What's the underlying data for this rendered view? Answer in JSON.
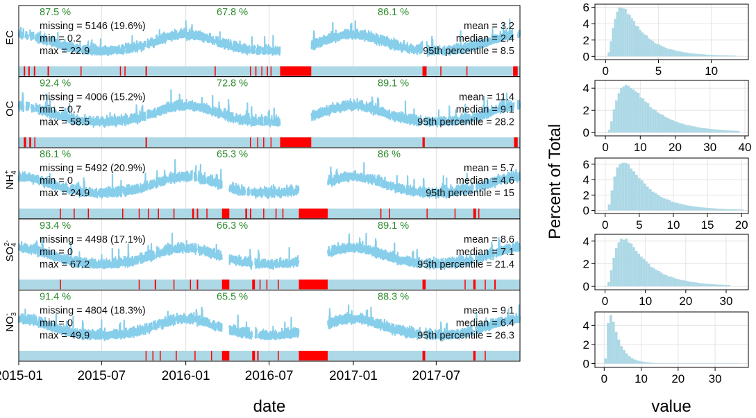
{
  "chart_data": [
    {
      "type": "line",
      "xlabel": "date",
      "ylabel": "",
      "x_ticks": [
        "2015-01",
        "2015-07",
        "2016-01",
        "2016-07",
        "2017-01",
        "2017-07"
      ],
      "x_tick_dates": [
        "2015-01-01",
        "2015-07-01",
        "2016-01-01",
        "2016-07-01",
        "2017-01-01",
        "2017-07-01"
      ],
      "xlim": [
        "2015-01-01",
        "2017-12-31"
      ],
      "series_color": "#87ceeb",
      "missing_color": "#ff0000",
      "bar_color": "#add8e6",
      "panels": [
        {
          "name": "EC",
          "label_main": "EC",
          "label_sub": "",
          "label_sup": "",
          "ymax": 22.9,
          "year_pct": [
            "87.5 %",
            "67.8 %",
            "86.1 %"
          ],
          "stats_left": [
            "missing = 5146 (19.6%)",
            "min = 0.2",
            "max = 22.9"
          ],
          "stats_right": [
            "mean = 3.2",
            "median = 2.4",
            "95th percentile = 8.5"
          ],
          "missing_periods": [
            [
              "2016-07-25",
              "2016-10-01"
            ],
            [
              "2015-01-12",
              "2015-01-15"
            ],
            [
              "2015-01-22",
              "2015-01-25"
            ],
            [
              "2015-02-03",
              "2015-02-06"
            ],
            [
              "2015-03-05",
              "2015-03-08"
            ],
            [
              "2015-05-16",
              "2015-05-18"
            ],
            [
              "2015-08-10",
              "2015-08-12"
            ],
            [
              "2015-08-20",
              "2015-08-22"
            ],
            [
              "2015-10-05",
              "2015-10-08"
            ],
            [
              "2016-03-04",
              "2016-03-06"
            ],
            [
              "2016-05-20",
              "2016-05-22"
            ],
            [
              "2016-06-01",
              "2016-06-03"
            ],
            [
              "2016-06-14",
              "2016-06-16"
            ],
            [
              "2016-06-26",
              "2016-06-28"
            ],
            [
              "2016-07-04",
              "2016-07-06"
            ],
            [
              "2017-06-01",
              "2017-06-10"
            ],
            [
              "2017-07-10",
              "2017-07-12"
            ],
            [
              "2017-09-05",
              "2017-09-07"
            ],
            [
              "2017-12-16",
              "2017-12-26"
            ]
          ]
        },
        {
          "name": "OC",
          "label_main": "OC",
          "label_sub": "",
          "label_sup": "",
          "ymax": 58.5,
          "year_pct": [
            "92.4 %",
            "72.8 %",
            "89.1 %"
          ],
          "stats_left": [
            "missing = 4006 (15.2%)",
            "min = 0.7",
            "max = 58.5"
          ],
          "stats_right": [
            "mean = 11.4",
            "median = 9.1",
            "95th percentile = 28.2"
          ],
          "missing_periods": [
            [
              "2016-07-25",
              "2016-10-01"
            ],
            [
              "2015-01-12",
              "2015-01-17"
            ],
            [
              "2015-01-24",
              "2015-01-28"
            ],
            [
              "2015-02-04",
              "2015-02-06"
            ],
            [
              "2015-10-05",
              "2015-10-08"
            ],
            [
              "2016-05-20",
              "2016-05-22"
            ],
            [
              "2016-06-05",
              "2016-06-07"
            ],
            [
              "2016-06-18",
              "2016-06-20"
            ],
            [
              "2016-07-04",
              "2016-07-06"
            ],
            [
              "2017-06-01",
              "2017-06-06"
            ],
            [
              "2017-12-18",
              "2017-12-26"
            ]
          ]
        },
        {
          "name": "NH4+",
          "label_main": "NH",
          "label_sub": "4",
          "label_sup": "+",
          "ymax": 24.9,
          "year_pct": [
            "86.1 %",
            "65.3 %",
            "86 %"
          ],
          "stats_left": [
            "missing = 5492 (20.9%)",
            "min = 0",
            "max = 24.9"
          ],
          "stats_right": [
            "mean = 5.7",
            "median = 4.6",
            "95th percentile = 15"
          ],
          "missing_periods": [
            [
              "2016-09-04",
              "2016-11-06"
            ],
            [
              "2016-03-20",
              "2016-04-05"
            ],
            [
              "2015-04-01",
              "2015-04-03"
            ],
            [
              "2015-05-01",
              "2015-05-03"
            ],
            [
              "2015-06-01",
              "2015-06-03"
            ],
            [
              "2015-08-15",
              "2015-08-17"
            ],
            [
              "2015-09-20",
              "2015-09-22"
            ],
            [
              "2015-10-10",
              "2015-10-12"
            ],
            [
              "2015-11-01",
              "2015-11-03"
            ],
            [
              "2015-12-05",
              "2015-12-07"
            ],
            [
              "2016-01-15",
              "2016-01-19"
            ],
            [
              "2016-01-25",
              "2016-01-28"
            ],
            [
              "2016-02-15",
              "2016-02-17"
            ],
            [
              "2016-05-10",
              "2016-05-14"
            ],
            [
              "2016-05-20",
              "2016-05-23"
            ],
            [
              "2016-06-18",
              "2016-06-20"
            ],
            [
              "2016-07-15",
              "2016-07-17"
            ],
            [
              "2016-07-30",
              "2016-08-01"
            ],
            [
              "2017-03-01",
              "2017-03-03"
            ],
            [
              "2017-03-20",
              "2017-03-22"
            ],
            [
              "2017-06-10",
              "2017-06-12"
            ],
            [
              "2017-08-10",
              "2017-08-12"
            ],
            [
              "2017-09-20",
              "2017-09-26"
            ],
            [
              "2017-10-01",
              "2017-10-03"
            ]
          ]
        },
        {
          "name": "SO42-",
          "label_main": "SO",
          "label_sub": "4",
          "label_sup": "2-",
          "ymax": 67.2,
          "year_pct": [
            "93.4 %",
            "66.3 %",
            "89.1 %"
          ],
          "stats_left": [
            "missing = 4498 (17.1%)",
            "min = 0",
            "max = 67.2"
          ],
          "stats_right": [
            "mean = 8.6",
            "median = 7.1",
            "95th percentile = 21.4"
          ],
          "missing_periods": [
            [
              "2016-09-04",
              "2016-11-06"
            ],
            [
              "2016-03-20",
              "2016-04-05"
            ],
            [
              "2015-04-01",
              "2015-04-03"
            ],
            [
              "2015-09-20",
              "2015-09-22"
            ],
            [
              "2015-10-25",
              "2015-10-28"
            ],
            [
              "2015-12-05",
              "2015-12-07"
            ],
            [
              "2016-01-10",
              "2016-01-12"
            ],
            [
              "2016-01-25",
              "2016-01-28"
            ],
            [
              "2016-05-25",
              "2016-05-31"
            ],
            [
              "2016-06-10",
              "2016-06-12"
            ],
            [
              "2016-06-25",
              "2016-06-27"
            ],
            [
              "2016-07-20",
              "2016-07-22"
            ],
            [
              "2017-06-01",
              "2017-06-08"
            ],
            [
              "2017-09-01",
              "2017-09-03"
            ],
            [
              "2017-09-20",
              "2017-09-25"
            ],
            [
              "2017-10-15",
              "2017-10-17"
            ],
            [
              "2017-11-05",
              "2017-11-08"
            ]
          ]
        },
        {
          "name": "NO3-",
          "label_main": "NO",
          "label_sub": "3",
          "label_sup": "-",
          "ymax": 49.9,
          "year_pct": [
            "91.4 %",
            "65.5 %",
            "88.3 %"
          ],
          "stats_left": [
            "missing = 4804 (18.3%)",
            "min = 0",
            "max = 49.9"
          ],
          "stats_right": [
            "mean = 9.1",
            "median = 6.4",
            "95th percentile = 26.3"
          ],
          "missing_periods": [
            [
              "2016-09-04",
              "2016-11-06"
            ],
            [
              "2016-03-20",
              "2016-04-05"
            ],
            [
              "2015-10-05",
              "2015-10-07"
            ],
            [
              "2015-10-20",
              "2015-10-22"
            ],
            [
              "2015-11-05",
              "2015-11-07"
            ],
            [
              "2015-12-10",
              "2015-12-12"
            ],
            [
              "2016-01-20",
              "2016-01-22"
            ],
            [
              "2016-02-25",
              "2016-02-27"
            ],
            [
              "2016-05-25",
              "2016-05-31"
            ],
            [
              "2016-06-05",
              "2016-06-08"
            ],
            [
              "2016-07-20",
              "2016-07-22"
            ],
            [
              "2017-06-01",
              "2017-06-07"
            ],
            [
              "2017-09-20",
              "2017-09-25"
            ],
            [
              "2017-10-15",
              "2017-10-17"
            ]
          ]
        }
      ]
    },
    {
      "type": "bar",
      "xlabel": "value",
      "ylabel": "Percent of Total",
      "bar_color": "#add8e6",
      "panels": [
        {
          "name": "EC",
          "xlim": [
            -1,
            13.5
          ],
          "x_ticks": [
            0,
            5,
            10
          ],
          "ylim": [
            -0.4,
            6.4
          ],
          "y_ticks": [
            0,
            2,
            4,
            6
          ],
          "bin_start": 0.2,
          "bin_end": 12.2,
          "bin_width": 0.2,
          "peak": 6.0,
          "peak_value": 1.6
        },
        {
          "name": "OC",
          "xlim": [
            -3,
            41
          ],
          "x_ticks": [
            0,
            10,
            20,
            30,
            40
          ],
          "ylim": [
            -0.3,
            4.7
          ],
          "y_ticks": [
            0,
            2,
            4
          ],
          "bin_start": 0.7,
          "bin_end": 38.5,
          "bin_width": 0.7,
          "peak": 4.3,
          "peak_value": 6.3
        },
        {
          "name": "NH4+",
          "xlim": [
            -1.5,
            21
          ],
          "x_ticks": [
            0,
            5,
            10,
            15,
            20
          ],
          "ylim": [
            -0.4,
            6.8
          ],
          "y_ticks": [
            0,
            2,
            4,
            6
          ],
          "bin_start": 0,
          "bin_end": 20,
          "bin_width": 0.4,
          "peak": 6.3,
          "peak_value": 2.8
        },
        {
          "name": "SO42-",
          "xlim": [
            -2.5,
            35.5
          ],
          "x_ticks": [
            0,
            10,
            20,
            30
          ],
          "ylim": [
            -0.3,
            4.6
          ],
          "y_ticks": [
            0,
            2,
            4
          ],
          "bin_start": 0,
          "bin_end": 31,
          "bin_width": 0.62,
          "peak": 4.2,
          "peak_value": 4.8
        },
        {
          "name": "NO3-",
          "xlim": [
            -2.5,
            39
          ],
          "x_ticks": [
            0,
            10,
            20,
            30
          ],
          "ylim": [
            -0.4,
            5.4
          ],
          "y_ticks": [
            0,
            2,
            4
          ],
          "bin_start": 0,
          "bin_end": 36,
          "bin_width": 0.72,
          "peak": 5.1,
          "peak_value": 1.8
        }
      ]
    }
  ]
}
